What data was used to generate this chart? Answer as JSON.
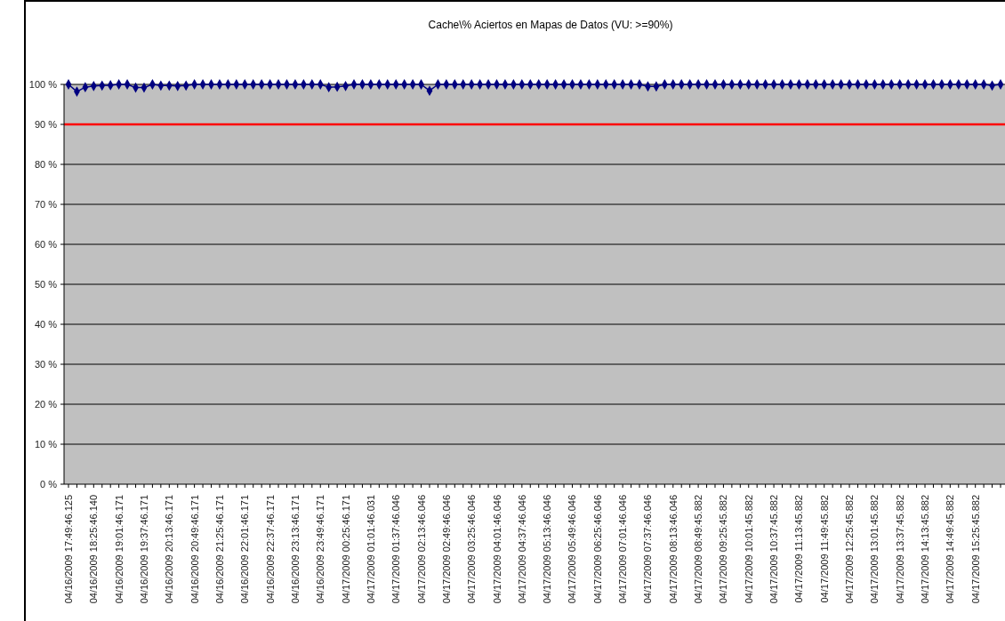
{
  "chart_data": {
    "type": "line",
    "title": "Cache\\% Aciertos en Mapas de Datos (VU: >=90%)",
    "categories": [
      "04/16/2009 17:49:46.125",
      null,
      null,
      "04/16/2009 18:25:46.140",
      null,
      null,
      "04/16/2009 19:01:46.171",
      null,
      null,
      "04/16/2009 19:37:46.171",
      null,
      null,
      "04/16/2009 20:13:46.171",
      null,
      null,
      "04/16/2009 20:49:46.171",
      null,
      null,
      "04/16/2009 21:25:46.171",
      null,
      null,
      "04/16/2009 22:01:46.171",
      null,
      null,
      "04/16/2009 22:37:46.171",
      null,
      null,
      "04/16/2009 23:13:46.171",
      null,
      null,
      "04/16/2009 23:49:46.171",
      null,
      null,
      "04/17/2009 00:25:46.171",
      null,
      null,
      "04/17/2009 01:01:46.031",
      null,
      null,
      "04/17/2009 01:37:46.046",
      null,
      null,
      "04/17/2009 02:13:46.046",
      null,
      null,
      "04/17/2009 02:49:46.046",
      null,
      null,
      "04/17/2009 03:25:46.046",
      null,
      null,
      "04/17/2009 04:01:46.046",
      null,
      null,
      "04/17/2009 04:37:46.046",
      null,
      null,
      "04/17/2009 05:13:46.046",
      null,
      null,
      "04/17/2009 05:49:46.046",
      null,
      null,
      "04/17/2009 06:25:46.046",
      null,
      null,
      "04/17/2009 07:01:46.046",
      null,
      null,
      "04/17/2009 07:37:46.046",
      null,
      null,
      "04/17/2009 08:13:46.046",
      null,
      null,
      "04/17/2009 08:49:45.882",
      null,
      null,
      "04/17/2009 09:25:45.882",
      null,
      null,
      "04/17/2009 10:01:45.882",
      null,
      null,
      "04/17/2009 10:37:45.882",
      null,
      null,
      "04/17/2009 11:13:45.882",
      null,
      null,
      "04/17/2009 11:49:45.882",
      null,
      null,
      "04/17/2009 12:25:45.882",
      null,
      null,
      "04/17/2009 13:01:45.882",
      null,
      null,
      "04/17/2009 13:37:45.882",
      null,
      null,
      "04/17/2009 14:13:45.882",
      null,
      null,
      "04/17/2009 14:49:45.882",
      null,
      null,
      "04/17/2009 15:25:45.882",
      null,
      null,
      null
    ],
    "series": [
      {
        "color": "#000080",
        "values": [
          100,
          98.2,
          99.3,
          99.6,
          99.7,
          99.8,
          100,
          100,
          99.2,
          99.2,
          100,
          99.7,
          99.7,
          99.6,
          99.7,
          100,
          100,
          100,
          100,
          100,
          100,
          100,
          100,
          100,
          100,
          100,
          100,
          100,
          100,
          100,
          100,
          99.3,
          99.4,
          99.6,
          100,
          100,
          100,
          100,
          100,
          100,
          100,
          100,
          100,
          98.4,
          100,
          100,
          100,
          100,
          100,
          100,
          100,
          100,
          100,
          100,
          100,
          100,
          100,
          100,
          100,
          100,
          100,
          100,
          100,
          100,
          100,
          100,
          100,
          100,
          100,
          99.5,
          99.5,
          100,
          100,
          100,
          100,
          100,
          100,
          100,
          100,
          100,
          100,
          100,
          100,
          100,
          100,
          100,
          100,
          100,
          100,
          100,
          100,
          100,
          100,
          100,
          100,
          100,
          100,
          100,
          100,
          100,
          100,
          100,
          100,
          100,
          100,
          100,
          100,
          100,
          100,
          100,
          99.7,
          100
        ]
      }
    ],
    "ylim": [
      0,
      100
    ],
    "yticks": [
      {
        "value": 0,
        "label": "0 %"
      },
      {
        "value": 10,
        "label": "10 %"
      },
      {
        "value": 20,
        "label": "20 %"
      },
      {
        "value": 30,
        "label": "30 %"
      },
      {
        "value": 40,
        "label": "40 %"
      },
      {
        "value": 50,
        "label": "50 %"
      },
      {
        "value": 60,
        "label": "60 %"
      },
      {
        "value": 70,
        "label": "70 %"
      },
      {
        "value": 80,
        "label": "80 %"
      },
      {
        "value": 90,
        "label": "90 %"
      },
      {
        "value": 100,
        "label": "100 %"
      }
    ],
    "grid": "y",
    "marker": "diamond",
    "line_style": "solid",
    "ref_lines": [
      {
        "axis": "y",
        "value": 90,
        "color": "#ff0000",
        "line_style": "solid"
      }
    ]
  }
}
